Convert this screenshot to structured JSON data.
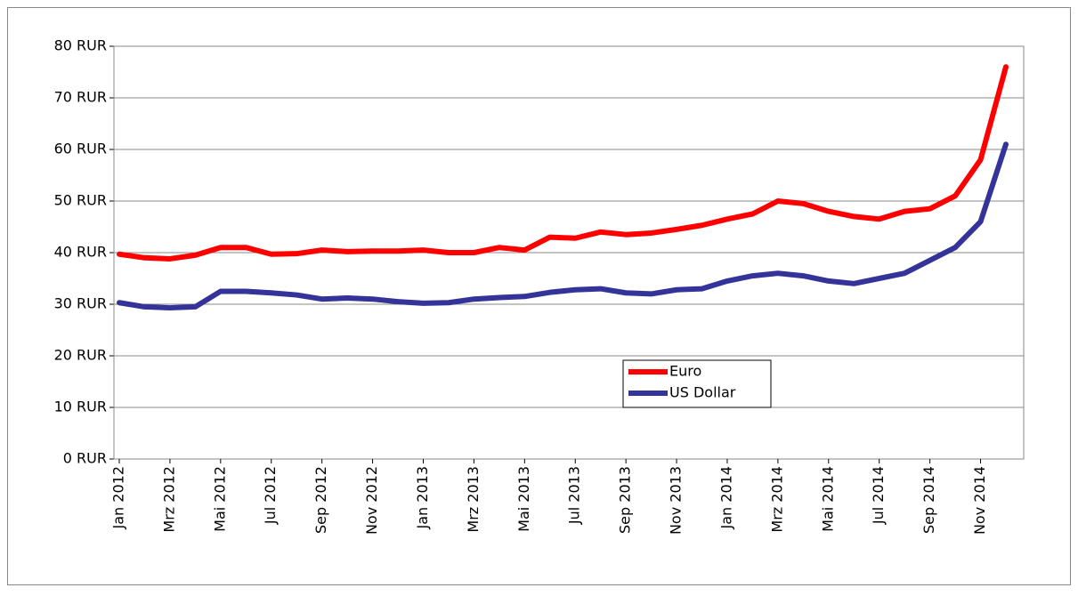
{
  "chart_data": {
    "type": "line",
    "categories": [
      "Jan 2012",
      null,
      "Mrz 2012",
      null,
      "Mai 2012",
      null,
      "Jul 2012",
      null,
      "Sep 2012",
      null,
      "Nov 2012",
      null,
      "Jan 2013",
      null,
      "Mrz 2013",
      null,
      "Mai 2013",
      null,
      "Jul 2013",
      null,
      "Sep 2013",
      null,
      "Nov 2013",
      null,
      "Jan 2014",
      null,
      "Mrz 2014",
      null,
      "Mai 2014",
      null,
      "Jul 2014",
      null,
      "Sep 2014",
      null,
      "Nov 2014",
      null
    ],
    "series": [
      {
        "name": "Euro",
        "color": "#ff0000",
        "values": [
          39.7,
          39,
          38.8,
          39.5,
          41,
          41,
          39.7,
          39.8,
          40.5,
          40.2,
          40.3,
          40.3,
          40.5,
          40,
          40,
          41,
          40.5,
          43,
          42.8,
          44,
          43.5,
          43.8,
          44.5,
          45.3,
          46.5,
          47.5,
          50,
          49.5,
          48,
          47,
          46.5,
          48,
          48.5,
          51,
          58,
          76
        ]
      },
      {
        "name": "US Dollar",
        "color": "#333399",
        "values": [
          30.3,
          29.5,
          29.3,
          29.5,
          32.5,
          32.5,
          32.2,
          31.8,
          31,
          31.2,
          31,
          30.5,
          30.2,
          30.3,
          31,
          31.3,
          31.5,
          32.3,
          32.8,
          33,
          32.2,
          32,
          32.8,
          33,
          34.5,
          35.5,
          36,
          35.5,
          34.5,
          34,
          35,
          36,
          38.5,
          41,
          46,
          61
        ]
      }
    ],
    "ylim": [
      0,
      80
    ],
    "yticks": [
      {
        "value": 0,
        "label": "0 RUR"
      },
      {
        "value": 10,
        "label": "10 RUR"
      },
      {
        "value": 20,
        "label": "20 RUR"
      },
      {
        "value": 30,
        "label": "30 RUR"
      },
      {
        "value": 40,
        "label": "40 RUR"
      },
      {
        "value": 50,
        "label": "50 RUR"
      },
      {
        "value": 60,
        "label": "60 RUR"
      },
      {
        "value": 70,
        "label": "70 RUR"
      },
      {
        "value": 80,
        "label": "80 RUR"
      }
    ],
    "grid": true
  }
}
